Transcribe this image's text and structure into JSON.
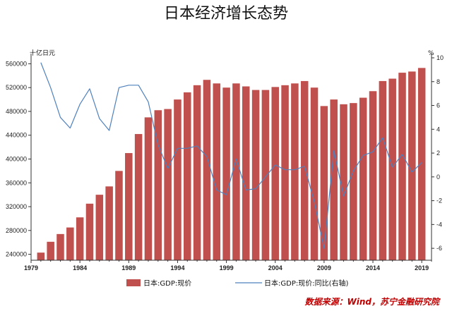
{
  "chart_data": {
    "type": "bar",
    "title": "日本经济增长态势",
    "left_axis_unit": "十亿日元",
    "right_axis_unit": "%",
    "x": [
      1980,
      1981,
      1982,
      1983,
      1984,
      1985,
      1986,
      1987,
      1988,
      1989,
      1990,
      1991,
      1992,
      1993,
      1994,
      1995,
      1996,
      1997,
      1998,
      1999,
      2000,
      2001,
      2002,
      2003,
      2004,
      2005,
      2006,
      2007,
      2008,
      2009,
      2010,
      2011,
      2012,
      2013,
      2014,
      2015,
      2016,
      2017,
      2018,
      2019
    ],
    "x_tick_labels": [
      "1979",
      "1984",
      "1989",
      "1994",
      "1999",
      "2004",
      "2009",
      "2014",
      "2019"
    ],
    "x_tick_values": [
      1979,
      1984,
      1989,
      1994,
      1999,
      2004,
      2009,
      2014,
      2019
    ],
    "xlim": [
      1979,
      2020
    ],
    "y_left": {
      "ylim": [
        230000,
        570000
      ],
      "ticks": [
        240000,
        280000,
        320000,
        360000,
        400000,
        440000,
        480000,
        520000,
        560000
      ],
      "tick_labels": [
        "240000",
        "280000",
        "320000",
        "360000",
        "400000",
        "440000",
        "480000",
        "520000",
        "560000"
      ]
    },
    "y_right": {
      "ylim": [
        -7,
        10
      ],
      "ticks": [
        -6,
        -4,
        -2,
        0,
        2,
        4,
        6,
        8,
        10
      ],
      "tick_labels": [
        "-6",
        "-4",
        "-2",
        "0",
        "2",
        "4",
        "6",
        "8",
        "10"
      ]
    },
    "series": [
      {
        "name": "日本:GDP:现价",
        "type": "bar",
        "axis": "left",
        "color": "#c0504d",
        "values": [
          242800,
          261000,
          274000,
          285000,
          302000,
          325000,
          340000,
          354000,
          380000,
          410000,
          442000,
          470000,
          482000,
          484000,
          500000,
          512000,
          524000,
          533000,
          527000,
          520000,
          527000,
          522000,
          516000,
          516000,
          521000,
          524000,
          527000,
          531000,
          520000,
          489000,
          500000,
          492000,
          494000,
          503000,
          514000,
          531000,
          535000,
          545000,
          547000,
          553000
        ]
      },
      {
        "name": "日本:GDP:现价:同比(右轴)",
        "type": "line",
        "axis": "right",
        "color": "#4f81bd",
        "values": [
          9.6,
          7.5,
          5.0,
          4.1,
          6.1,
          7.4,
          4.9,
          3.9,
          7.5,
          7.7,
          7.7,
          6.3,
          2.7,
          0.7,
          2.4,
          2.4,
          2.6,
          1.7,
          -1.1,
          -1.5,
          1.5,
          -1.1,
          -1.0,
          0.0,
          1.0,
          0.6,
          0.6,
          0.9,
          -2.1,
          -6.0,
          2.2,
          -1.6,
          0.5,
          1.8,
          2.1,
          3.3,
          0.8,
          1.9,
          0.4,
          1.2
        ]
      }
    ],
    "legend_position": "bottom",
    "grid": false,
    "source": "数据来源：Wind，苏宁金融研究院"
  }
}
